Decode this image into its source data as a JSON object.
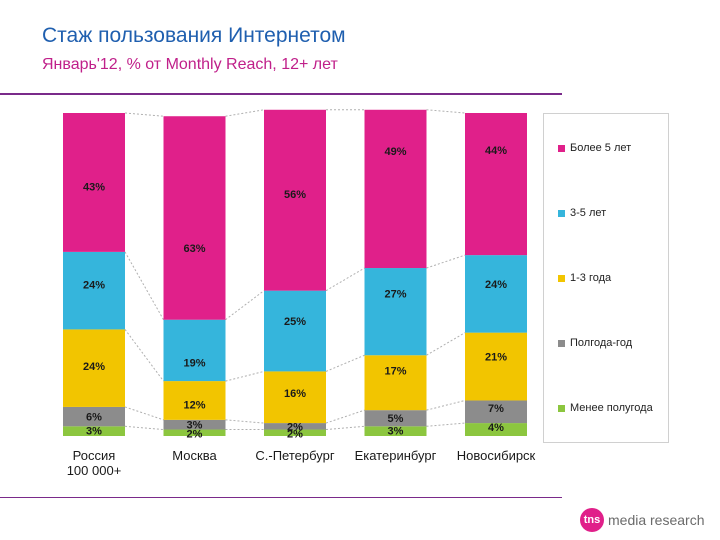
{
  "header": {
    "title": "Стаж пользования Интернетом",
    "subtitle": "Январь'12, % от Monthly Reach, 12+ лет"
  },
  "logo": {
    "mark": "tns",
    "text": "media research"
  },
  "colors": {
    "title": "#1f5faf",
    "subtitle": "#c0208a",
    "rule": "#7a2a8a"
  },
  "chart_data": {
    "type": "bar",
    "stacked": true,
    "percent": true,
    "title": "Стаж пользования Интернетом",
    "categories": [
      "Россия\n100 000+",
      "Москва",
      "С.-Петербург",
      "Екатеринбург",
      "Новосибирск"
    ],
    "series": [
      {
        "name": "Менее полугода",
        "color": "#8cc63f",
        "values": [
          3,
          2,
          2,
          3,
          4
        ],
        "labels": [
          "3%",
          "2%",
          "2%",
          "3%",
          "4%"
        ]
      },
      {
        "name": "Полгода-год",
        "color": "#8c8c8c",
        "values": [
          6,
          3,
          2,
          5,
          7
        ],
        "labels": [
          "6%",
          "3%",
          "2%",
          "5%",
          "7%"
        ]
      },
      {
        "name": "1-3 года",
        "color": "#f2c500",
        "values": [
          24,
          12,
          16,
          17,
          21
        ],
        "labels": [
          "24%",
          "12%",
          "16%",
          "17%",
          "21%"
        ]
      },
      {
        "name": "3-5 лет",
        "color": "#35b5dc",
        "values": [
          24,
          19,
          25,
          27,
          24
        ],
        "labels": [
          "24%",
          "19%",
          "25%",
          "27%",
          "24%"
        ]
      },
      {
        "name": "Более 5 лет",
        "color": "#e0208a",
        "values": [
          43,
          63,
          56,
          49,
          44
        ],
        "labels": [
          "43%",
          "63%",
          "56%",
          "49%",
          "44%"
        ]
      }
    ],
    "legend": [
      "Более 5 лет",
      "3-5 лет",
      "1-3 года",
      "Полгода-год",
      "Менее полугода"
    ],
    "legend_position": "right",
    "ylim": [
      0,
      100
    ],
    "grid": false
  }
}
